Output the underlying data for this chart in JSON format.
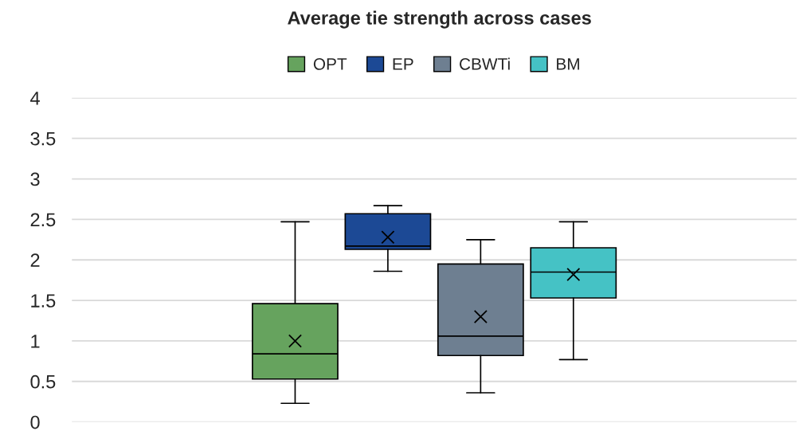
{
  "chart_data": {
    "type": "box",
    "title": "Average tie strength across cases",
    "categories": [
      null
    ],
    "ylim": [
      0,
      4
    ],
    "yticks": [
      0,
      0.5,
      1,
      1.5,
      2,
      2.5,
      3,
      3.5,
      4
    ],
    "grid": "y",
    "legend": "top",
    "tick_labels": "y",
    "series": [
      {
        "name": "OPT",
        "color": "#66a35e",
        "boxes": [
          {
            "low": 0.23,
            "q1": 0.53,
            "median": 0.84,
            "q3": 1.46,
            "high": 2.47,
            "mean": 1.0
          }
        ]
      },
      {
        "name": "EP",
        "color": "#1c4995",
        "boxes": [
          {
            "low": 1.86,
            "q1": 2.13,
            "median": 2.17,
            "q3": 2.57,
            "high": 2.67,
            "mean": 2.28
          }
        ]
      },
      {
        "name": "CBWTi",
        "color": "#6e7f91",
        "boxes": [
          {
            "low": 0.36,
            "q1": 0.82,
            "median": 1.06,
            "q3": 1.95,
            "high": 2.25,
            "mean": 1.3
          }
        ]
      },
      {
        "name": "BM",
        "color": "#45c2c5",
        "boxes": [
          {
            "low": 0.77,
            "q1": 1.53,
            "median": 1.85,
            "q3": 2.15,
            "high": 2.47,
            "mean": 1.82
          }
        ]
      }
    ]
  }
}
